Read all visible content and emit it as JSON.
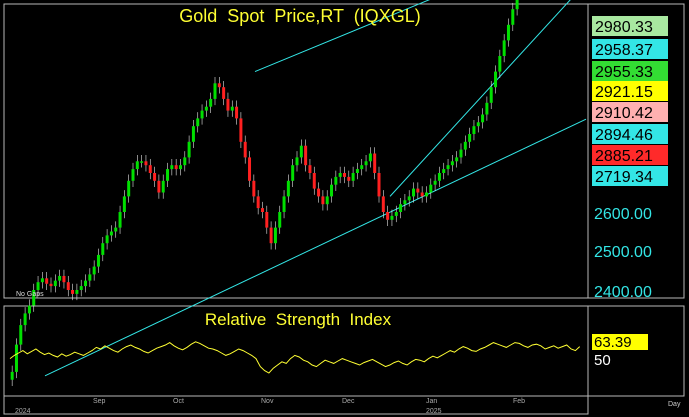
{
  "window": {
    "background": "#000000",
    "panel_border": "#b8b8b8"
  },
  "price_panel": {
    "title": "Gold  Spot  Price,RT  (IQXGL)",
    "title_color": "#ffff33",
    "gap_note": "No Gaps",
    "price_labels": [
      {
        "text": "2980.33",
        "value": 2980.33,
        "bg": "#a8e8a0"
      },
      {
        "text": "2958.37",
        "value": 2958.37,
        "bg": "#33e6e6"
      },
      {
        "text": "2955.33",
        "value": 2955.33,
        "bg": "#33dd33"
      },
      {
        "text": "2921.15",
        "value": 2921.15,
        "bg": "#ffff00"
      },
      {
        "text": "2910.42",
        "value": 2910.42,
        "bg": "#ffb0b0"
      },
      {
        "text": "2894.46",
        "value": 2894.46,
        "bg": "#33e6e6"
      },
      {
        "text": "2885.21",
        "value": 2885.21,
        "bg": "#ff2a2a"
      },
      {
        "text": "2719.34",
        "value": 2719.34,
        "bg": "#33e6e6"
      }
    ],
    "axis_ticks": [
      "2600.00",
      "2500.00",
      "2400.00"
    ],
    "axis_color": "#33e6e6"
  },
  "rsi_panel": {
    "title": "Relative  Strength  Index",
    "title_color": "#ffff33",
    "current_label": "63.39",
    "current_bg": "#ffff00",
    "axis_tick": "50"
  },
  "time_axis": {
    "labels": [
      "2024",
      "Sep",
      "Oct",
      "Nov",
      "Dec",
      "Jan",
      "2025",
      "Feb"
    ],
    "unit_label": "Day"
  },
  "chart_data": [
    {
      "type": "candlestick",
      "title": "Gold  Spot  Price,RT  (IQXGL)",
      "y_ticks": [
        2400,
        2500,
        2600
      ],
      "ylim": [
        2380,
        3010
      ],
      "x_months": [
        "Aug 2024",
        "Sep",
        "Oct",
        "Nov",
        "Dec",
        "Jan 2025",
        "Feb"
      ],
      "up_color": "#00e000",
      "down_color": "#ff2020",
      "close_series": [
        2395,
        2430,
        2455,
        2470,
        2480,
        2500,
        2510,
        2515,
        2508,
        2505,
        2512,
        2518,
        2510,
        2500,
        2495,
        2500,
        2505,
        2512,
        2520,
        2530,
        2545,
        2560,
        2570,
        2575,
        2580,
        2600,
        2620,
        2640,
        2655,
        2665,
        2665,
        2660,
        2650,
        2640,
        2625,
        2640,
        2655,
        2660,
        2655,
        2660,
        2670,
        2690,
        2710,
        2720,
        2730,
        2735,
        2745,
        2765,
        2760,
        2745,
        2730,
        2735,
        2720,
        2690,
        2670,
        2640,
        2620,
        2605,
        2600,
        2580,
        2560,
        2580,
        2600,
        2620,
        2640,
        2660,
        2670,
        2685,
        2660,
        2650,
        2630,
        2620,
        2610,
        2620,
        2635,
        2645,
        2650,
        2645,
        2640,
        2650,
        2655,
        2660,
        2665,
        2675,
        2650,
        2620,
        2600,
        2590,
        2595,
        2600,
        2610,
        2615,
        2620,
        2630,
        2625,
        2620,
        2625,
        2635,
        2640,
        2650,
        2655,
        2660,
        2665,
        2670,
        2680,
        2690,
        2700,
        2710,
        2715,
        2725,
        2740,
        2760,
        2780,
        2800,
        2820,
        2840,
        2860,
        2880,
        2895,
        2910,
        2900,
        2905,
        2920,
        2930,
        2935,
        2925,
        2940,
        2945,
        2935,
        2930,
        2935,
        2920,
        2915
      ],
      "channels": [
        {
          "name": "upper channel",
          "start": 2780,
          "end": 2955
        },
        {
          "name": "lower channel",
          "start": 2390,
          "end": 2719
        },
        {
          "name": "short-term trend",
          "start": 2620,
          "end": 2894
        }
      ],
      "horizontal_levels": [
        {
          "value": 2980.33,
          "color": "#66ee66"
        },
        {
          "value": 2955.33,
          "color": "#33dd33"
        },
        {
          "value": 2910.42,
          "color": "#ff9090"
        },
        {
          "value": 2885.21,
          "color": "#ff3030"
        }
      ]
    },
    {
      "type": "line",
      "title": "Relative  Strength  Index",
      "y_ticks": [
        50
      ],
      "ylim": [
        20,
        85
      ],
      "current_value": 63.39,
      "color": "#ffff33",
      "values": [
        48,
        52,
        55,
        58,
        54,
        57,
        60,
        56,
        53,
        55,
        52,
        50,
        54,
        51,
        53,
        56,
        54,
        52,
        55,
        58,
        62,
        60,
        64,
        61,
        58,
        56,
        60,
        63,
        65,
        62,
        60,
        57,
        55,
        58,
        61,
        63,
        65,
        68,
        64,
        61,
        59,
        62,
        66,
        69,
        67,
        64,
        61,
        60,
        58,
        55,
        52,
        54,
        57,
        60,
        58,
        55,
        52,
        48,
        38,
        33,
        30,
        36,
        40,
        44,
        42,
        48,
        52,
        50,
        46,
        44,
        40,
        38,
        42,
        46,
        44,
        42,
        45,
        48,
        46,
        44,
        42,
        40,
        43,
        45,
        47,
        44,
        41,
        38,
        40,
        43,
        45,
        42,
        40,
        44,
        47,
        46,
        44,
        48,
        51,
        49,
        52,
        55,
        58,
        56,
        60,
        63,
        61,
        58,
        57,
        60,
        62,
        65,
        68,
        66,
        64,
        62,
        65,
        68,
        67,
        64,
        62,
        65,
        66,
        64,
        60,
        62,
        64,
        61,
        63,
        65,
        60,
        58,
        63
      ]
    }
  ]
}
